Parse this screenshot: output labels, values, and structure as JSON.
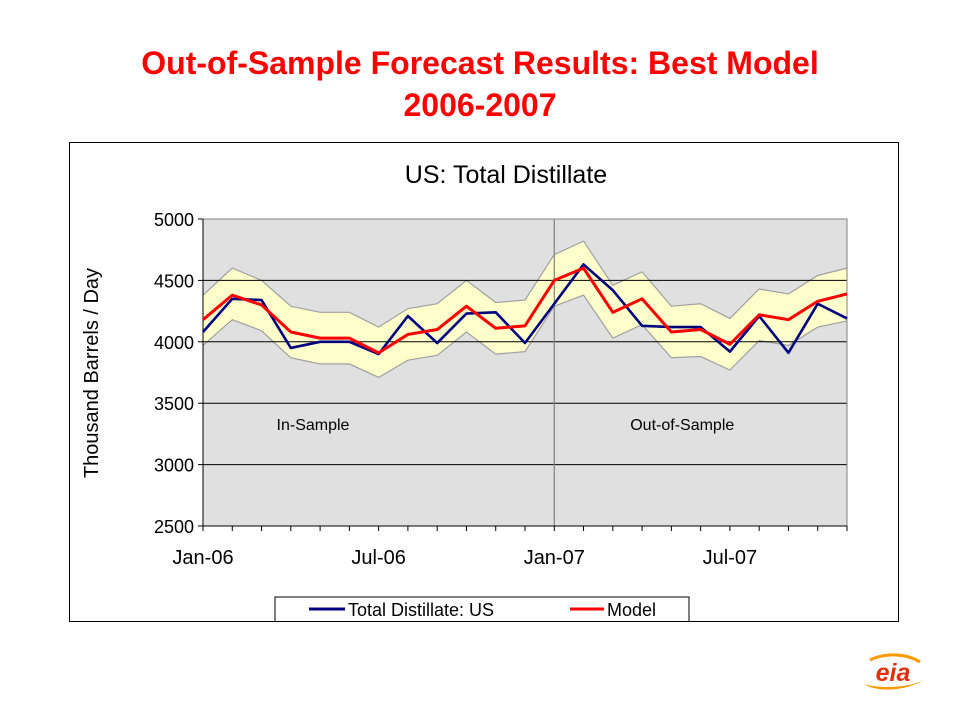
{
  "slide": {
    "title_line1": "Out-of-Sample Forecast Results:  Best Model",
    "title_line2": "2006-2007",
    "logo_text": "eia"
  },
  "colors": {
    "title": "#ff0000",
    "actual_series": "#000080",
    "model_series": "#ff0000",
    "band_fill": "#ffffcc",
    "plot_background": "#e0e0e0"
  },
  "chart_data": {
    "type": "line",
    "title": "US:  Total Distillate",
    "ylabel": "Thousand Barrels / Day",
    "xlabel": "",
    "ylim": [
      2500,
      5000
    ],
    "yticks": [
      2500,
      3000,
      3500,
      4000,
      4500,
      5000
    ],
    "x": [
      "Jan-06",
      "Feb-06",
      "Mar-06",
      "Apr-06",
      "May-06",
      "Jun-06",
      "Jul-06",
      "Aug-06",
      "Sep-06",
      "Oct-06",
      "Nov-06",
      "Dec-06",
      "Jan-07",
      "Feb-07",
      "Mar-07",
      "Apr-07",
      "May-07",
      "Jun-07",
      "Jul-07",
      "Aug-07",
      "Sep-07",
      "Oct-07",
      "Nov-07"
    ],
    "xtick_labels": [
      "Jan-06",
      "Jul-06",
      "Jan-07",
      "Jul-07"
    ],
    "grid": true,
    "legend_position": "bottom",
    "annotations": {
      "in_sample": "In-Sample",
      "out_of_sample": "Out-of-Sample",
      "split_at": "Jan-07"
    },
    "series": [
      {
        "name": "Total Distillate: US",
        "values": [
          4080,
          4350,
          4340,
          3950,
          4000,
          4000,
          3900,
          4210,
          3990,
          4230,
          4240,
          3990,
          4310,
          4630,
          4420,
          4130,
          4120,
          4120,
          3920,
          4210,
          3910,
          4310,
          4190
        ]
      },
      {
        "name": "Model",
        "values": [
          4180,
          4380,
          4300,
          4080,
          4030,
          4030,
          3910,
          4060,
          4100,
          4290,
          4110,
          4130,
          4500,
          4600,
          4240,
          4350,
          4080,
          4100,
          3980,
          4220,
          4180,
          4330,
          4390
        ]
      }
    ],
    "band": {
      "upper": [
        4380,
        4600,
        4500,
        4290,
        4240,
        4240,
        4120,
        4270,
        4310,
        4500,
        4320,
        4340,
        4710,
        4820,
        4460,
        4570,
        4290,
        4310,
        4190,
        4430,
        4390,
        4540,
        4600
      ],
      "lower": [
        3970,
        4180,
        4090,
        3870,
        3820,
        3820,
        3710,
        3850,
        3890,
        4080,
        3900,
        3920,
        4290,
        4380,
        4030,
        4140,
        3870,
        3880,
        3770,
        4010,
        3970,
        4120,
        4170
      ]
    }
  }
}
